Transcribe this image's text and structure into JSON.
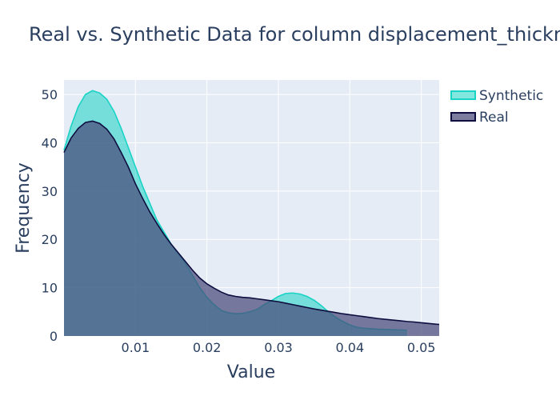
{
  "chart_data": {
    "type": "area",
    "title": "Real vs. Synthetic Data for column displacement_thickness",
    "xlabel": "Value",
    "ylabel": "Frequency",
    "xlim": [
      0.0,
      0.0525
    ],
    "ylim": [
      0,
      53
    ],
    "x_ticks": [
      0.01,
      0.02,
      0.03,
      0.04,
      0.05
    ],
    "x_tick_labels": [
      "0.01",
      "0.02",
      "0.03",
      "0.04",
      "0.05"
    ],
    "y_ticks": [
      0,
      10,
      20,
      30,
      40,
      50
    ],
    "y_tick_labels": [
      "0",
      "10",
      "20",
      "30",
      "40",
      "50"
    ],
    "grid": true,
    "legend_position": "top-right",
    "series": [
      {
        "name": "Synthetic",
        "line_color": "#19d3c5",
        "fill_color": "#19d3c5",
        "fill_opacity": 0.55,
        "points": [
          [
            0.0,
            38.5
          ],
          [
            0.001,
            43.5
          ],
          [
            0.002,
            47.5
          ],
          [
            0.003,
            50.0
          ],
          [
            0.004,
            50.8
          ],
          [
            0.005,
            50.3
          ],
          [
            0.006,
            49.0
          ],
          [
            0.007,
            46.5
          ],
          [
            0.008,
            43.0
          ],
          [
            0.009,
            39.0
          ],
          [
            0.01,
            35.0
          ],
          [
            0.011,
            31.0
          ],
          [
            0.012,
            27.5
          ],
          [
            0.013,
            24.0
          ],
          [
            0.014,
            21.5
          ],
          [
            0.015,
            19.0
          ],
          [
            0.016,
            17.0
          ],
          [
            0.017,
            15.0
          ],
          [
            0.018,
            12.5
          ],
          [
            0.019,
            10.0
          ],
          [
            0.02,
            8.0
          ],
          [
            0.021,
            6.5
          ],
          [
            0.022,
            5.3
          ],
          [
            0.023,
            4.8
          ],
          [
            0.024,
            4.6
          ],
          [
            0.025,
            4.7
          ],
          [
            0.026,
            5.0
          ],
          [
            0.027,
            5.5
          ],
          [
            0.028,
            6.5
          ],
          [
            0.029,
            7.3
          ],
          [
            0.03,
            8.2
          ],
          [
            0.031,
            8.8
          ],
          [
            0.032,
            8.9
          ],
          [
            0.033,
            8.7
          ],
          [
            0.034,
            8.2
          ],
          [
            0.035,
            7.4
          ],
          [
            0.036,
            6.3
          ],
          [
            0.037,
            5.0
          ],
          [
            0.038,
            3.9
          ],
          [
            0.039,
            3.0
          ],
          [
            0.04,
            2.3
          ],
          [
            0.041,
            1.8
          ],
          [
            0.042,
            1.6
          ],
          [
            0.043,
            1.5
          ],
          [
            0.044,
            1.4
          ],
          [
            0.045,
            1.35
          ],
          [
            0.046,
            1.3
          ],
          [
            0.047,
            1.25
          ],
          [
            0.048,
            1.2
          ]
        ]
      },
      {
        "name": "Real",
        "line_color": "#0d0d3f",
        "fill_color": "#4a4a78",
        "fill_opacity": 0.72,
        "points": [
          [
            0.0,
            38.0
          ],
          [
            0.001,
            41.0
          ],
          [
            0.002,
            43.0
          ],
          [
            0.003,
            44.2
          ],
          [
            0.004,
            44.5
          ],
          [
            0.005,
            44.0
          ],
          [
            0.006,
            42.8
          ],
          [
            0.007,
            40.8
          ],
          [
            0.008,
            38.0
          ],
          [
            0.009,
            35.0
          ],
          [
            0.01,
            31.5
          ],
          [
            0.011,
            28.5
          ],
          [
            0.012,
            25.7
          ],
          [
            0.013,
            23.3
          ],
          [
            0.014,
            21.0
          ],
          [
            0.015,
            19.0
          ],
          [
            0.016,
            17.2
          ],
          [
            0.017,
            15.4
          ],
          [
            0.018,
            13.6
          ],
          [
            0.019,
            12.0
          ],
          [
            0.02,
            10.8
          ],
          [
            0.021,
            9.9
          ],
          [
            0.022,
            9.1
          ],
          [
            0.023,
            8.5
          ],
          [
            0.024,
            8.2
          ],
          [
            0.025,
            8.0
          ],
          [
            0.026,
            7.9
          ],
          [
            0.027,
            7.7
          ],
          [
            0.028,
            7.5
          ],
          [
            0.029,
            7.3
          ],
          [
            0.03,
            7.1
          ],
          [
            0.031,
            6.8
          ],
          [
            0.032,
            6.5
          ],
          [
            0.033,
            6.2
          ],
          [
            0.034,
            5.9
          ],
          [
            0.035,
            5.6
          ],
          [
            0.036,
            5.35
          ],
          [
            0.037,
            5.1
          ],
          [
            0.038,
            4.85
          ],
          [
            0.039,
            4.6
          ],
          [
            0.04,
            4.4
          ],
          [
            0.041,
            4.2
          ],
          [
            0.042,
            4.0
          ],
          [
            0.043,
            3.8
          ],
          [
            0.044,
            3.6
          ],
          [
            0.045,
            3.45
          ],
          [
            0.046,
            3.3
          ],
          [
            0.047,
            3.15
          ],
          [
            0.048,
            3.0
          ],
          [
            0.049,
            2.9
          ],
          [
            0.05,
            2.75
          ],
          [
            0.051,
            2.6
          ],
          [
            0.052,
            2.45
          ],
          [
            0.0525,
            2.4
          ]
        ]
      }
    ]
  },
  "colors": {
    "plot_background": "#e5ecf6",
    "grid": "#ffffff",
    "text": "#2a3f5f"
  }
}
